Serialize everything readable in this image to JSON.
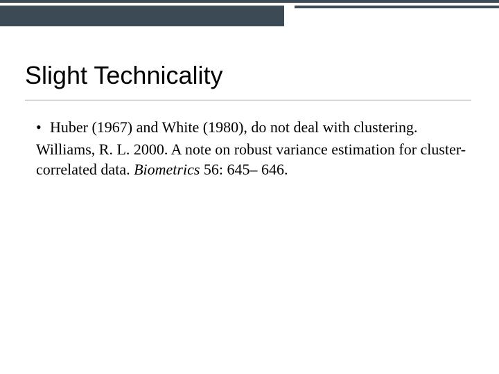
{
  "slide": {
    "title": "Slight Technicality",
    "bullet1": "Huber (1967) and White (1980), do not deal with clustering.",
    "reference_line1": "Williams, R. L. 2000. A note on robust variance estimation for cluster-correlated data.",
    "reference_journal": "Biometrics",
    "reference_citation": " 56: 645– 646."
  },
  "layout": {
    "border_top_color": "#3b4a54",
    "border_left_width_pct": 57,
    "border_right_width_pct": 41,
    "title_fontsize": 36,
    "body_fontsize": 22,
    "background_color": "#ffffff",
    "underline_color": "#999999"
  }
}
